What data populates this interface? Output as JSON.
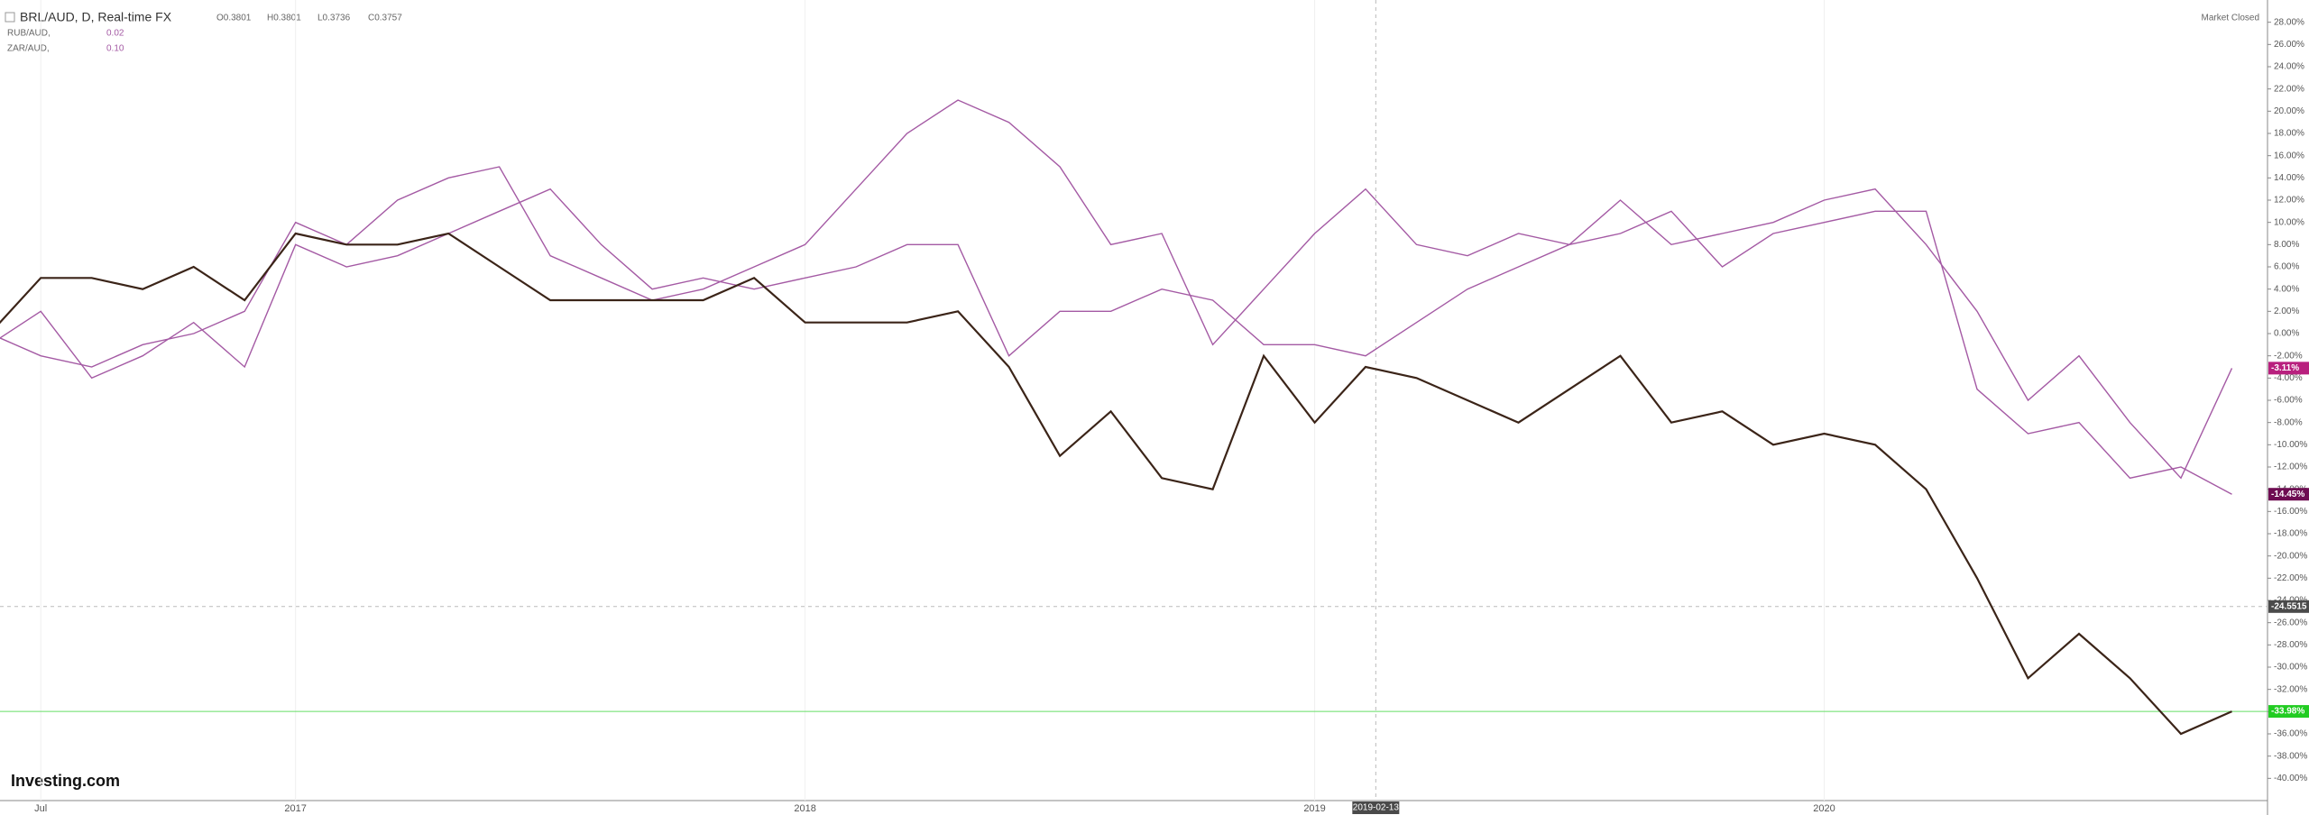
{
  "chart_data": {
    "type": "line",
    "header": {
      "title": "BRL/AUD, D, Real-time FX",
      "ohlc": [
        "O0.3801",
        "H0.3801",
        "L0.3736",
        "C0.3757"
      ],
      "status": "Market Closed",
      "brand": "Investing.com"
    },
    "legend_values": [
      "0.02",
      "0.10"
    ],
    "x": [
      2016.4,
      2016.5,
      2016.6,
      2016.7,
      2016.8,
      2016.9,
      2017.0,
      2017.1,
      2017.2,
      2017.3,
      2017.4,
      2017.5,
      2017.6,
      2017.7,
      2017.8,
      2017.9,
      2018.0,
      2018.1,
      2018.2,
      2018.3,
      2018.4,
      2018.5,
      2018.6,
      2018.7,
      2018.8,
      2018.9,
      2019.0,
      2019.1,
      2019.2,
      2019.3,
      2019.4,
      2019.5,
      2019.6,
      2019.7,
      2019.8,
      2019.9,
      2020.0,
      2020.1,
      2020.2,
      2020.3,
      2020.4,
      2020.5,
      2020.6,
      2020.7,
      2020.8
    ],
    "series": [
      {
        "name": "BRL/AUD, D, Real-time FX",
        "color": "#3b2418",
        "values": [
          0,
          5,
          5,
          4,
          6,
          3,
          9,
          8,
          8,
          9,
          6,
          3,
          3,
          3,
          3,
          5,
          1,
          1,
          1,
          2,
          -3,
          -11,
          -7,
          -13,
          -14,
          -2,
          -8,
          -3,
          -4,
          -6,
          -8,
          -5,
          -2,
          -8,
          -7,
          -10,
          -9,
          -10,
          -14,
          -22,
          -31,
          -27,
          -31,
          -36,
          -33.98
        ]
      },
      {
        "name": "RUB/AUD,",
        "color": "#a45aa4",
        "values": [
          0,
          -2,
          -3,
          -1,
          0,
          2,
          10,
          8,
          12,
          14,
          15,
          7,
          5,
          3,
          4,
          6,
          8,
          13,
          18,
          21,
          19,
          15,
          8,
          9,
          -1,
          4,
          9,
          13,
          8,
          7,
          9,
          8,
          12,
          8,
          9,
          10,
          12,
          13,
          8,
          2,
          -6,
          -2,
          -8,
          -13,
          -3.11
        ]
      },
      {
        "name": "ZAR/AUD,",
        "color": "#a45aa4",
        "values": [
          -1,
          2,
          -4,
          -2,
          1,
          -3,
          8,
          6,
          7,
          9,
          11,
          13,
          8,
          4,
          5,
          4,
          5,
          6,
          8,
          8,
          -2,
          2,
          2,
          4,
          3,
          -1,
          -1,
          -2,
          1,
          4,
          6,
          8,
          9,
          11,
          6,
          9,
          10,
          11,
          11,
          -5,
          -9,
          -8,
          -13,
          -12,
          -14.45
        ]
      }
    ],
    "xlim": [
      2016.42,
      2020.87
    ],
    "xticks": [
      {
        "value": 2016.5,
        "label": "Jul"
      },
      2017,
      2018,
      2019,
      2020
    ],
    "ylim": [
      -42,
      30
    ],
    "yticks": [
      {
        "value": 28,
        "label": "28.00%"
      },
      {
        "value": 26,
        "label": "26.00%"
      },
      {
        "value": 24,
        "label": "24.00%"
      },
      {
        "value": 22,
        "label": "22.00%"
      },
      {
        "value": 20,
        "label": "20.00%"
      },
      {
        "value": 18,
        "label": "18.00%"
      },
      {
        "value": 16,
        "label": "16.00%"
      },
      {
        "value": 14,
        "label": "14.00%"
      },
      {
        "value": 12,
        "label": "12.00%"
      },
      {
        "value": 10,
        "label": "10.00%"
      },
      {
        "value": 8,
        "label": "8.00%"
      },
      {
        "value": 6,
        "label": "6.00%"
      },
      {
        "value": 4,
        "label": "4.00%"
      },
      {
        "value": 2,
        "label": "2.00%"
      },
      {
        "value": 0,
        "label": "0.00%"
      },
      {
        "value": -2,
        "label": "-2.00%"
      },
      {
        "value": -4,
        "label": "-4.00%"
      },
      {
        "value": -6,
        "label": "-6.00%"
      },
      {
        "value": -8,
        "label": "-8.00%"
      },
      {
        "value": -10,
        "label": "-10.00%"
      },
      {
        "value": -12,
        "label": "-12.00%"
      },
      {
        "value": -14,
        "label": "-14.00%"
      },
      {
        "value": -16,
        "label": "-16.00%"
      },
      {
        "value": -18,
        "label": "-18.00%"
      },
      {
        "value": -20,
        "label": "-20.00%"
      },
      {
        "value": -22,
        "label": "-22.00%"
      },
      {
        "value": -24,
        "label": "-24.00%"
      },
      {
        "value": -26,
        "label": "-26.00%"
      },
      {
        "value": -28,
        "label": "-28.00%"
      },
      {
        "value": -30,
        "label": "-30.00%"
      },
      {
        "value": -32,
        "label": "-32.00%"
      },
      {
        "value": -34,
        "label": "-34.00%"
      },
      {
        "value": -36,
        "label": "-36.00%"
      },
      {
        "value": -38,
        "label": "-38.00%"
      },
      {
        "value": -40,
        "label": "-40.00%"
      }
    ],
    "price_tags": [
      {
        "value": -3.11,
        "label": "-3.11%",
        "color": "#b8207e"
      },
      {
        "value": -14.45,
        "label": "-14.45%",
        "color": "#6e0c52"
      },
      {
        "value": -24.5515,
        "label": "-24.5515",
        "color": "#4a4a4a"
      },
      {
        "value": -33.98,
        "label": "-33.98%",
        "color": "#22cc22"
      }
    ],
    "crosshair": {
      "x": 2019.12,
      "label": "2019-02-13"
    },
    "grid": true
  }
}
